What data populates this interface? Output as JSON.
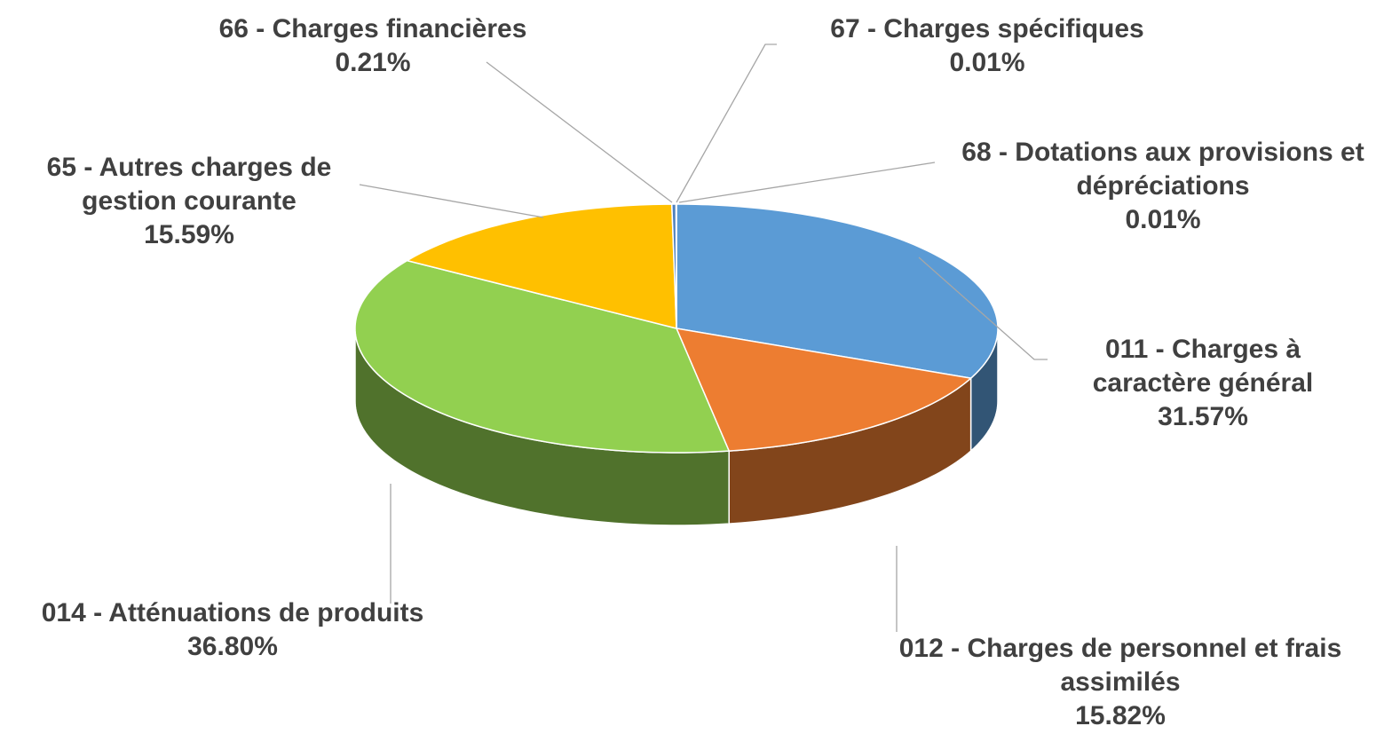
{
  "chart_data": {
    "type": "pie3d",
    "categories": [
      "011 - Charges à caractère général",
      "012 - Charges de personnel et frais assimilés",
      "014 - Atténuations de produits",
      "65 - Autres charges de gestion courante",
      "66 - Charges financières",
      "67 - Charges spécifiques",
      "68 - Dotations aux provisions et dépréciations"
    ],
    "values": [
      31.57,
      15.82,
      36.8,
      15.59,
      0.21,
      0.01,
      0.01
    ],
    "value_labels": [
      "31.57%",
      "15.82%",
      "36.80%",
      "15.59%",
      "0.21%",
      "0.01%",
      "0.01%"
    ],
    "colors": [
      "#5b9bd5",
      "#ed7d31",
      "#92d050",
      "#ffc000",
      "#4f81bd",
      "#a5a5a5",
      "#264478"
    ]
  }
}
